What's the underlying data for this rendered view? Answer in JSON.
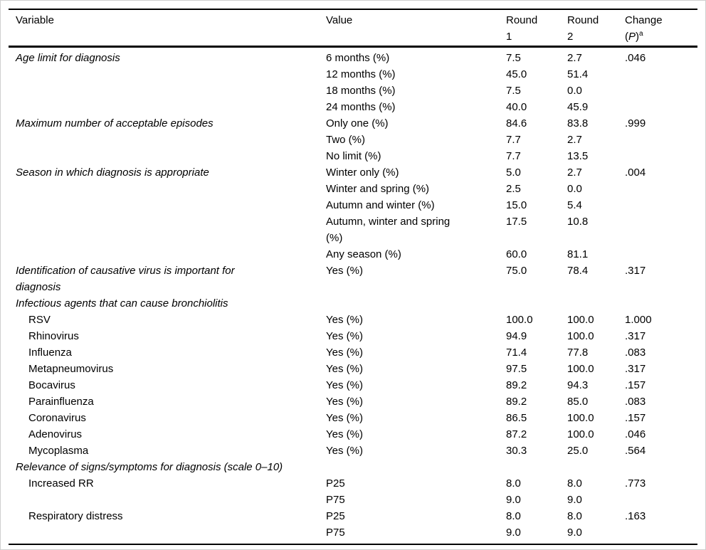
{
  "table": {
    "header": {
      "variable": "Variable",
      "value": "Value",
      "round1": "Round\n1",
      "round2": "Round\n2",
      "change_line1": "Change",
      "change_open": "(",
      "change_p": "P",
      "change_close": ")",
      "change_sup": "a"
    },
    "rows": [
      {
        "variable": "Age limit for diagnosis",
        "italic": true,
        "indent": false,
        "value": "6 months (%)",
        "r1": "7.5",
        "r2": "2.7",
        "p": ".046"
      },
      {
        "variable": "",
        "italic": false,
        "indent": false,
        "value": "12 months (%)",
        "r1": "45.0",
        "r2": "51.4",
        "p": ""
      },
      {
        "variable": "",
        "italic": false,
        "indent": false,
        "value": "18 months (%)",
        "r1": "7.5",
        "r2": "0.0",
        "p": ""
      },
      {
        "variable": "",
        "italic": false,
        "indent": false,
        "value": "24 months (%)",
        "r1": "40.0",
        "r2": "45.9",
        "p": ""
      },
      {
        "variable": "Maximum number of acceptable episodes",
        "italic": true,
        "indent": false,
        "value": "Only one (%)",
        "r1": "84.6",
        "r2": "83.8",
        "p": ".999"
      },
      {
        "variable": "",
        "italic": false,
        "indent": false,
        "value": "Two (%)",
        "r1": "7.7",
        "r2": "2.7",
        "p": ""
      },
      {
        "variable": "",
        "italic": false,
        "indent": false,
        "value": "No limit (%)",
        "r1": "7.7",
        "r2": "13.5",
        "p": ""
      },
      {
        "variable": "Season in which diagnosis is appropriate",
        "italic": true,
        "indent": false,
        "value": "Winter only (%)",
        "r1": "5.0",
        "r2": "2.7",
        "p": ".004"
      },
      {
        "variable": "",
        "italic": false,
        "indent": false,
        "value": "Winter and spring (%)",
        "r1": "2.5",
        "r2": "0.0",
        "p": ""
      },
      {
        "variable": "",
        "italic": false,
        "indent": false,
        "value": "Autumn and winter (%)",
        "r1": "15.0",
        "r2": "5.4",
        "p": ""
      },
      {
        "variable": "",
        "italic": false,
        "indent": false,
        "value": "Autumn, winter and spring\n(%)",
        "r1": "17.5",
        "r2": "10.8",
        "p": ""
      },
      {
        "variable": "",
        "italic": false,
        "indent": false,
        "value": "Any season (%)",
        "r1": "60.0",
        "r2": "81.1",
        "p": ""
      },
      {
        "variable": "Identification of causative virus is important for\ndiagnosis",
        "italic": true,
        "indent": false,
        "value": "Yes (%)",
        "r1": "75.0",
        "r2": "78.4",
        "p": ".317"
      },
      {
        "variable": "Infectious agents that can cause bronchiolitis",
        "italic": true,
        "indent": false,
        "value": "",
        "r1": "",
        "r2": "",
        "p": ""
      },
      {
        "variable": "RSV",
        "italic": false,
        "indent": true,
        "value": "Yes (%)",
        "r1": "100.0",
        "r2": "100.0",
        "p": "1.000"
      },
      {
        "variable": "Rhinovirus",
        "italic": false,
        "indent": true,
        "value": "Yes (%)",
        "r1": "94.9",
        "r2": "100.0",
        "p": ".317"
      },
      {
        "variable": "Influenza",
        "italic": false,
        "indent": true,
        "value": "Yes (%)",
        "r1": "71.4",
        "r2": "77.8",
        "p": ".083"
      },
      {
        "variable": "Metapneumovirus",
        "italic": false,
        "indent": true,
        "value": "Yes (%)",
        "r1": "97.5",
        "r2": "100.0",
        "p": ".317"
      },
      {
        "variable": "Bocavirus",
        "italic": false,
        "indent": true,
        "value": "Yes (%)",
        "r1": "89.2",
        "r2": "94.3",
        "p": ".157"
      },
      {
        "variable": "Parainfluenza",
        "italic": false,
        "indent": true,
        "value": "Yes (%)",
        "r1": "89.2",
        "r2": "85.0",
        "p": ".083"
      },
      {
        "variable": "Coronavirus",
        "italic": false,
        "indent": true,
        "value": "Yes (%)",
        "r1": "86.5",
        "r2": "100.0",
        "p": ".157"
      },
      {
        "variable": "Adenovirus",
        "italic": false,
        "indent": true,
        "value": "Yes (%)",
        "r1": "87.2",
        "r2": "100.0",
        "p": ".046"
      },
      {
        "variable": "Mycoplasma",
        "italic": false,
        "indent": true,
        "value": "Yes (%)",
        "r1": "30.3",
        "r2": "25.0",
        "p": ".564"
      },
      {
        "variable": "Relevance of signs/symptoms for diagnosis (scale 0–10)",
        "italic": true,
        "indent": false,
        "value": "",
        "r1": "",
        "r2": "",
        "p": ""
      },
      {
        "variable": "Increased RR",
        "italic": false,
        "indent": true,
        "value": "P25",
        "r1": "8.0",
        "r2": "8.0",
        "p": ".773"
      },
      {
        "variable": "",
        "italic": false,
        "indent": false,
        "value": "P75",
        "r1": "9.0",
        "r2": "9.0",
        "p": ""
      },
      {
        "variable": "Respiratory distress",
        "italic": false,
        "indent": true,
        "value": "P25",
        "r1": "8.0",
        "r2": "8.0",
        "p": ".163"
      },
      {
        "variable": "",
        "italic": false,
        "indent": false,
        "value": "P75",
        "r1": "9.0",
        "r2": "9.0",
        "p": ""
      }
    ]
  }
}
